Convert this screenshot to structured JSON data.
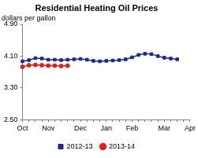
{
  "chart_data": {
    "type": "line",
    "title": "Residential Heating Oil Prices",
    "subtitle": "dollars per gallon",
    "categories": [
      "Oct",
      null,
      null,
      null,
      "Nov",
      null,
      null,
      null,
      null,
      "Dec",
      null,
      null,
      null,
      "Jan",
      null,
      null,
      null,
      "Feb",
      null,
      null,
      null,
      null,
      "Mar",
      null,
      null,
      null,
      "Apr"
    ],
    "series": [
      {
        "name": "2012-13",
        "color": "#1c2a8c",
        "marker": "square",
        "values": [
          3.97,
          4.0,
          4.05,
          4.04,
          4.01,
          4.01,
          4.0,
          4.01,
          4.02,
          4.03,
          4.01,
          3.98,
          3.97,
          3.98,
          3.99,
          4.0,
          4.02,
          4.07,
          4.13,
          4.16,
          4.15,
          4.1,
          4.06,
          4.04,
          4.02,
          null,
          null
        ]
      },
      {
        "name": "2013-14",
        "color": "#e0201b",
        "marker": "circle",
        "values": [
          3.83,
          3.87,
          3.88,
          3.87,
          3.86,
          3.86,
          3.85,
          3.86,
          null,
          null,
          null,
          null,
          null,
          null,
          null,
          null,
          null,
          null,
          null,
          null,
          null,
          null,
          null,
          null,
          null,
          null,
          null
        ]
      }
    ],
    "ylim": [
      2.5,
      4.9
    ],
    "yticks": [
      {
        "value": 2.5,
        "label": "2.50"
      },
      {
        "value": 3.3,
        "label": "3.30"
      },
      {
        "value": 4.1,
        "label": "4.10"
      },
      {
        "value": 4.9,
        "label": "4.90"
      }
    ],
    "grid": false,
    "legend": "bottom"
  }
}
